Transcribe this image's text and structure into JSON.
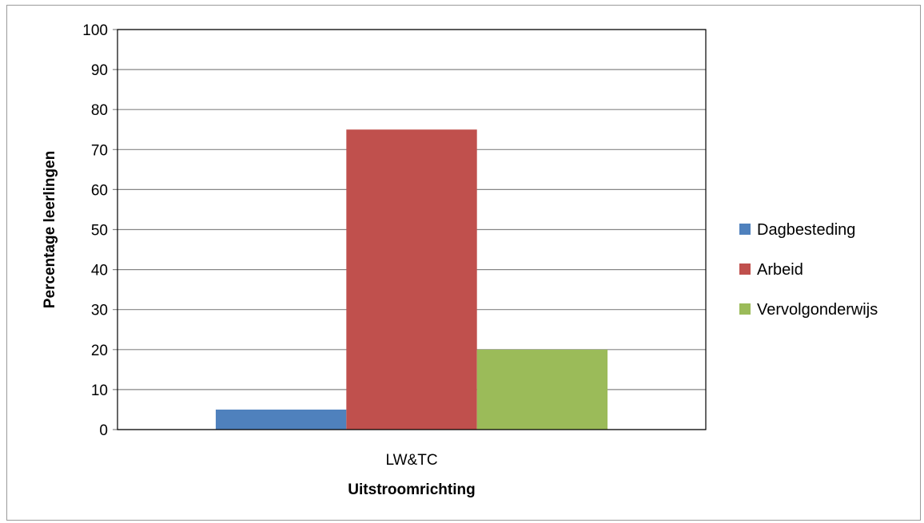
{
  "chart_data": {
    "type": "bar",
    "categories": [
      "LW&TC"
    ],
    "series": [
      {
        "name": "Dagbesteding",
        "values": [
          5
        ],
        "color": "#4f81bd"
      },
      {
        "name": "Arbeid",
        "values": [
          75
        ],
        "color": "#c0504d"
      },
      {
        "name": "Vervolgonderwijs",
        "values": [
          20
        ],
        "color": "#9bbb59"
      }
    ],
    "xlabel": "Uitstroomrichting",
    "ylabel": "Percentage leerlingen",
    "ylim": [
      0,
      100
    ],
    "yticks": [
      "0",
      "10",
      "20",
      "30",
      "40",
      "50",
      "60",
      "70",
      "80",
      "90",
      "100"
    ],
    "grid": true,
    "legend_position": "right"
  }
}
